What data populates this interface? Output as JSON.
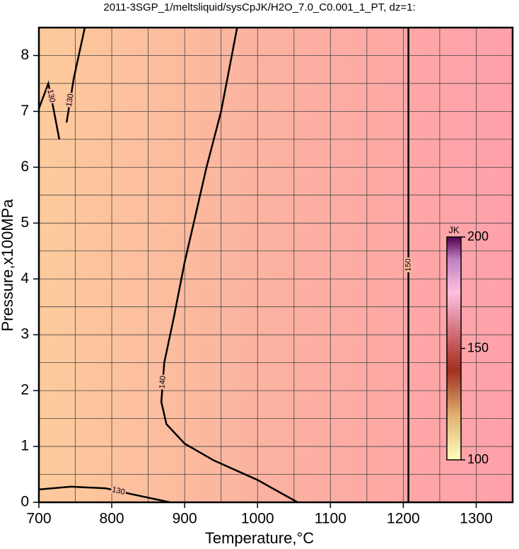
{
  "chart_data": {
    "type": "contour",
    "title": "2011-3SGP_1/meltsliquid/sysCpJK/H2O_7.0_C0.001_1_PT, dz=1:",
    "xlabel": "Temperature,°C",
    "ylabel": "Pressure,x100MPa",
    "xlim": [
      700,
      1350
    ],
    "ylim": [
      0,
      8.5
    ],
    "xticks": [
      700,
      800,
      900,
      1000,
      1100,
      1200,
      1300
    ],
    "yticks": [
      0,
      1,
      2,
      3,
      4,
      5,
      6,
      7,
      8
    ],
    "x_grid": [
      750,
      850,
      950,
      1050,
      1150,
      1250
    ],
    "y_grid": [
      0.5,
      1.5,
      2.5,
      3.5,
      4.5,
      5.5,
      6.5,
      7.5
    ],
    "grid": true,
    "line_color": "#000000",
    "series": [
      {
        "name": "140",
        "x": [
          972,
          950,
          930,
          914,
          900,
          885,
          872,
          868,
          875,
          900,
          940,
          1000,
          1055
        ],
        "y": [
          8.5,
          7.0,
          6.0,
          5.09,
          4.3,
          3.3,
          2.5,
          1.8,
          1.4,
          1.05,
          0.75,
          0.4,
          0
        ]
      },
      {
        "name": "150",
        "x": [
          1207,
          1207
        ],
        "y": [
          0,
          8.5
        ]
      },
      {
        "name": "130",
        "x": [
          700,
          744,
          792,
          826,
          880
        ],
        "y": [
          0.23,
          0.28,
          0.25,
          0.15,
          0
        ]
      },
      {
        "name": "130",
        "x": [
          763,
          748,
          738
        ],
        "y": [
          8.5,
          7.6,
          6.8
        ]
      },
      {
        "name": "130",
        "x": [
          700,
          713,
          720,
          728
        ],
        "y": [
          7.05,
          7.5,
          7.05,
          6.5
        ]
      }
    ],
    "colorbar": {
      "label": "JK",
      "lim": [
        100,
        200
      ],
      "ticks": [
        100,
        150,
        200
      ]
    }
  }
}
